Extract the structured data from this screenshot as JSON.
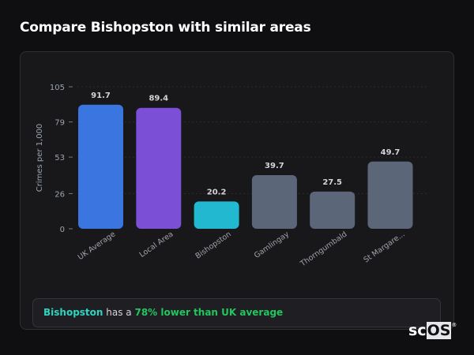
{
  "title": "Compare Bishopston with similar areas",
  "chart_data": {
    "type": "bar",
    "title": "",
    "xlabel": "",
    "ylabel": "Crimes per 1,000",
    "ylim": [
      0,
      105
    ],
    "yticks": [
      0,
      26,
      53,
      79,
      105
    ],
    "grid": true,
    "categories": [
      "UK Average",
      "Local Area",
      "Bishopston",
      "Gamlingay",
      "Thorngumbald",
      "St Margare..."
    ],
    "values": [
      91.7,
      89.4,
      20.2,
      39.7,
      27.5,
      49.7
    ],
    "colors": [
      "#3b76e0",
      "#7b4fd6",
      "#22b8cf",
      "#5b6678",
      "#5b6678",
      "#5b6678"
    ]
  },
  "summary": {
    "area": "Bishopston",
    "middle": " has a ",
    "highlight": "78% lower than UK average"
  },
  "logo": {
    "text_a": "sc",
    "text_b": "OS",
    "mark": "®"
  }
}
